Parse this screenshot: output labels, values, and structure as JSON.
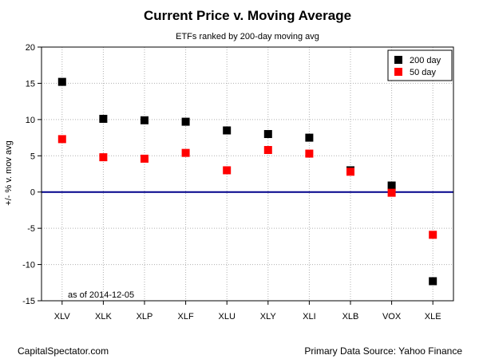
{
  "chart_data": {
    "type": "scatter",
    "title": "Current Price v. Moving Average",
    "subtitle": "ETFs ranked by 200-day moving avg",
    "xlabel": "",
    "ylabel": "+/- % v. mov avg",
    "ylim": [
      -15,
      20
    ],
    "yticks": [
      -15,
      -10,
      -5,
      0,
      5,
      10,
      15,
      20
    ],
    "grid": true,
    "legend_position": "top-right",
    "categories": [
      "XLV",
      "XLK",
      "XLP",
      "XLF",
      "XLU",
      "XLY",
      "XLI",
      "XLB",
      "VOX",
      "XLE"
    ],
    "series": [
      {
        "name": "200 day",
        "color": "#000000",
        "values": [
          15.2,
          10.1,
          9.9,
          9.7,
          8.5,
          8.0,
          7.5,
          3.0,
          0.9,
          -12.3
        ]
      },
      {
        "name": "50 day",
        "color": "#ff0000",
        "values": [
          7.3,
          4.8,
          4.6,
          5.4,
          3.0,
          5.8,
          5.3,
          2.8,
          -0.1,
          -5.9
        ]
      }
    ],
    "reference_line": {
      "y": 0,
      "color": "#00008b"
    },
    "note": "as of  2014-12-05"
  },
  "footer": {
    "left": "CapitalSpectator.com",
    "right": "Primary Data Source: Yahoo Finance"
  }
}
